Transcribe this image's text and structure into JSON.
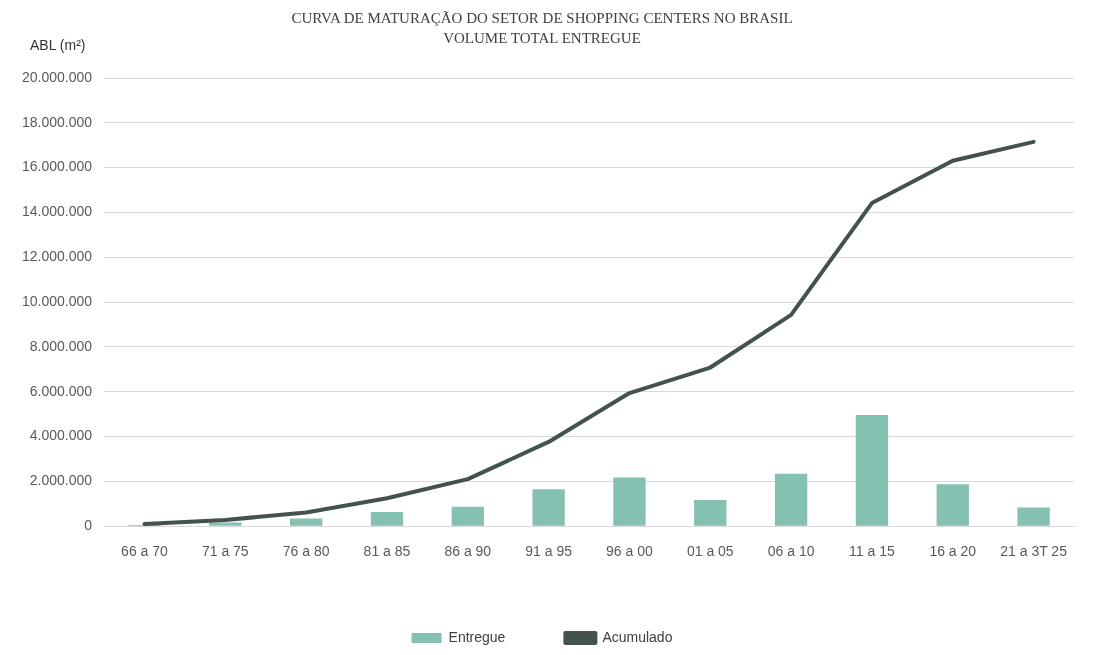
{
  "chart_data": {
    "type": "bar",
    "title": "CURVA DE MATURAÇÃO DO SETOR DE SHOPPING CENTERS NO BRASIL",
    "subtitle": "VOLUME TOTAL ENTREGUE",
    "ylabel": "ABL (m²)",
    "categories": [
      "66 a 70",
      "71 a 75",
      "76 a 80",
      "81 a 85",
      "86 a 90",
      "91 a 95",
      "96 a 00",
      "01 a 05",
      "06 a 10",
      "11 a 15",
      "16 a 20",
      "21 a 3T 25"
    ],
    "series": [
      {
        "name": "Entregue",
        "color": "#84c1b3",
        "values": [
          50000.0,
          170000.0,
          340000.0,
          630000.0,
          870000.0,
          1650000.0,
          2170000.0,
          1170000.0,
          2340000.0,
          4960000.0,
          1870000.0,
          830000.0
        ]
      },
      {
        "name": "Acumulado",
        "type": "line",
        "color": "#44524f",
        "values": [
          100000.0,
          280000.0,
          610000.0,
          1250000.0,
          2100000.0,
          3760000.0,
          5940000.0,
          7080000.0,
          9430000.0,
          14420000.0,
          16310000.0,
          17150000.0
        ]
      }
    ],
    "ylim": [
      0,
      20000000
    ],
    "yticks": [
      {
        "value": 0,
        "label": "0"
      },
      {
        "value": 2000000,
        "label": "2.000.000"
      },
      {
        "value": 4000000,
        "label": "4.000.000"
      },
      {
        "value": 6000000,
        "label": "6.000.000"
      },
      {
        "value": 8000000,
        "label": "8.000.000"
      },
      {
        "value": 10000000,
        "label": "10.000.000"
      },
      {
        "value": 12000000,
        "label": "12.000.000"
      },
      {
        "value": 14000000,
        "label": "14.000.000"
      },
      {
        "value": 16000000,
        "label": "16.000.000"
      },
      {
        "value": 18000000,
        "label": "18.000.000"
      },
      {
        "value": 20000000,
        "label": "20.000.000"
      }
    ],
    "grid": "y",
    "legend": "bottom",
    "marker": "none",
    "line_style": "solid"
  }
}
